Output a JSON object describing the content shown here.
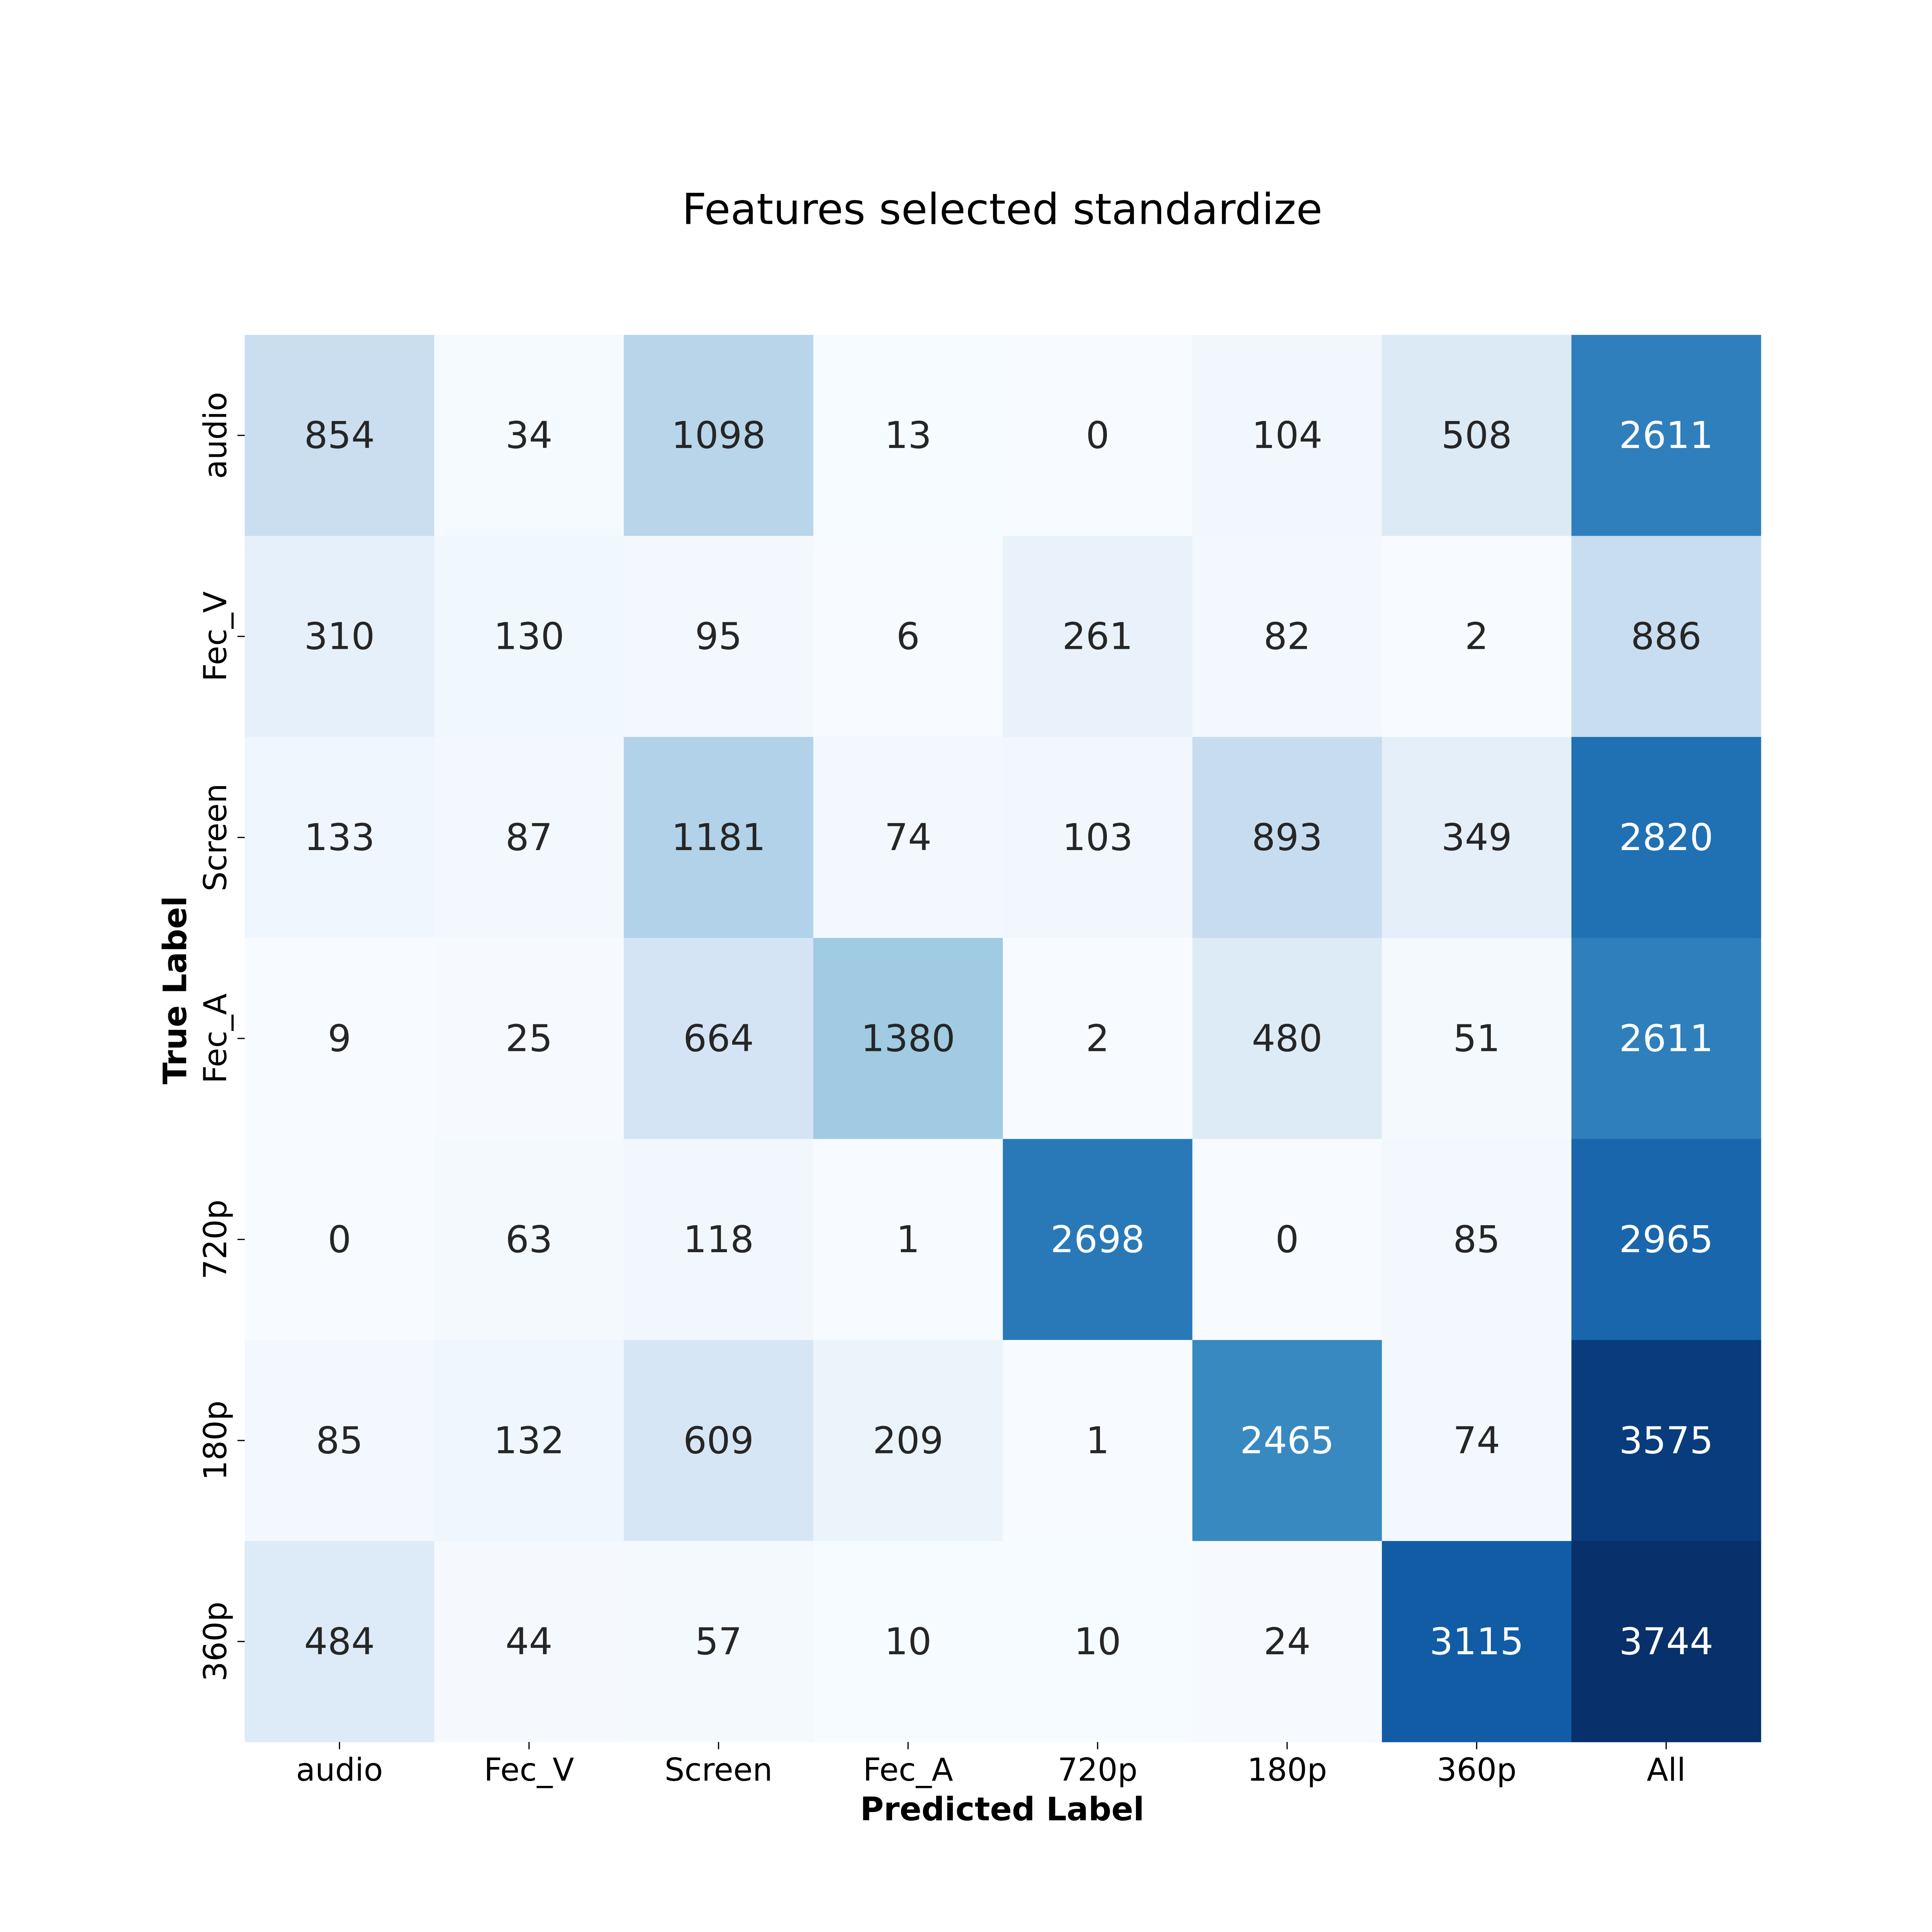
{
  "chart_data": {
    "type": "heatmap",
    "title": "Features selected standardize",
    "xlabel": "Predicted Label",
    "ylabel": "True Label",
    "x_categories": [
      "audio",
      "Fec_V",
      "Screen",
      "Fec_A",
      "720p",
      "180p",
      "360p",
      "All"
    ],
    "y_categories": [
      "audio",
      "Fec_V",
      "Screen",
      "Fec_A",
      "720p",
      "180p",
      "360p"
    ],
    "values": [
      [
        854,
        34,
        1098,
        13,
        0,
        104,
        508,
        2611
      ],
      [
        310,
        130,
        95,
        6,
        261,
        82,
        2,
        886
      ],
      [
        133,
        87,
        1181,
        74,
        103,
        893,
        349,
        2820
      ],
      [
        9,
        25,
        664,
        1380,
        2,
        480,
        51,
        2611
      ],
      [
        0,
        63,
        118,
        1,
        2698,
        0,
        85,
        2965
      ],
      [
        85,
        132,
        609,
        209,
        1,
        2465,
        74,
        3575
      ],
      [
        484,
        44,
        57,
        10,
        10,
        24,
        3115,
        3744
      ]
    ],
    "colormap": "Blues",
    "color_range": [
      0,
      3744
    ],
    "colorbar": false,
    "grid": false
  }
}
